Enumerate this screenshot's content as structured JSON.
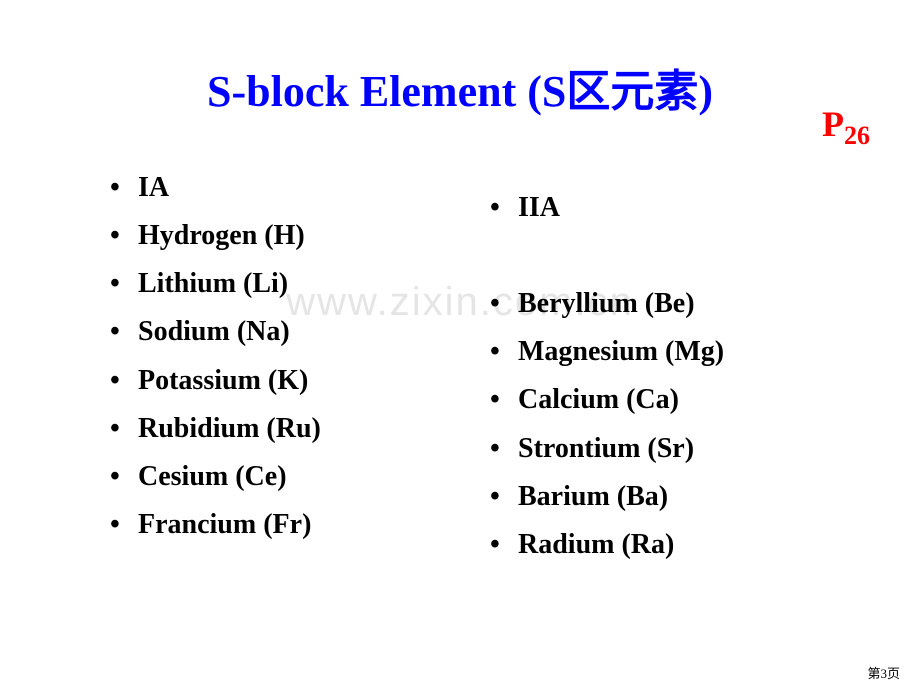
{
  "pageRef": {
    "prefix": "P",
    "number": "26"
  },
  "title": "S-block Element (S区元素)",
  "watermark": "www.zixin.com.cn",
  "columns": {
    "left": {
      "items": [
        "IA",
        "Hydrogen (H)",
        "Lithium (Li)",
        "Sodium (Na)",
        "Potassium (K)",
        "Rubidium (Ru)",
        "Cesium (Ce)",
        "Francium (Fr)"
      ]
    },
    "right": {
      "header": "IIA",
      "items": [
        "Beryllium (Be)",
        "Magnesium (Mg)",
        "Calcium (Ca)",
        "Strontium (Sr)",
        "Barium (Ba)",
        "Radium (Ra)"
      ]
    }
  },
  "pageNumber": "第3页",
  "styling": {
    "title_color": "#0000ff",
    "pageref_color": "#ff0000",
    "text_color": "#000000",
    "background_color": "#ffffff",
    "watermark_color": "#e5e5e5",
    "title_fontsize": 44,
    "body_fontsize": 28,
    "pageref_fontsize": 36
  }
}
